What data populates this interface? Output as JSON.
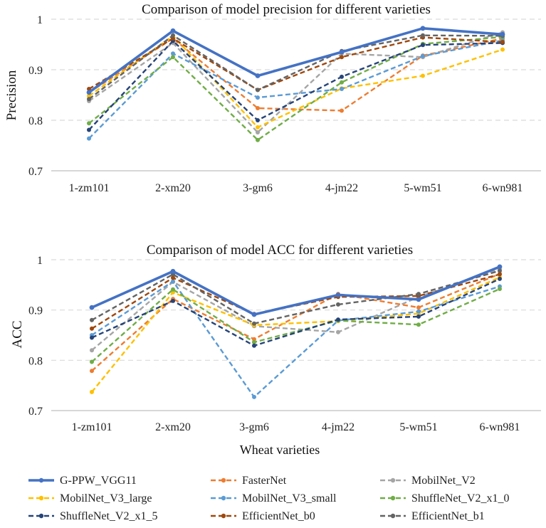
{
  "legend": [
    {
      "name": "G-PPW_VGG11",
      "color": "#4472C4",
      "dash": "solid"
    },
    {
      "name": "FasterNet",
      "color": "#ED7D31",
      "dash": "dash"
    },
    {
      "name": "MobilNet_V2",
      "color": "#A5A5A5",
      "dash": "dash"
    },
    {
      "name": "MobilNet_V3_large",
      "color": "#FFC000",
      "dash": "dash"
    },
    {
      "name": "MobilNet_V3_small",
      "color": "#5B9BD5",
      "dash": "dash"
    },
    {
      "name": "ShuffleNet_V2_x1_0",
      "color": "#70AD47",
      "dash": "dash"
    },
    {
      "name": "ShuffleNet_V2_x1_5",
      "color": "#264478",
      "dash": "dash"
    },
    {
      "name": "EfficientNet_b0",
      "color": "#9E480E",
      "dash": "dash"
    },
    {
      "name": "EfficientNet_b1",
      "color": "#636363",
      "dash": "dash"
    }
  ],
  "chart_data": [
    {
      "type": "line",
      "title": "Comparison of model precision for different varieties",
      "xlabel": "",
      "ylabel": "Precision",
      "ylim": [
        0.7,
        1.0
      ],
      "yticks": [
        "0.7",
        "0.8",
        "0.9",
        "1"
      ],
      "gridlines": "dashed horizontal at 0.8 and 0.9",
      "categories": [
        "1-zm101",
        "2-xm20",
        "3-gm6",
        "4-jm22",
        "5-wm51",
        "6-wn981"
      ],
      "series": [
        {
          "name": "G-PPW_VGG11",
          "values": [
            0.855,
            0.977,
            0.888,
            0.935,
            0.982,
            0.97
          ]
        },
        {
          "name": "FasterNet",
          "values": [
            0.855,
            0.962,
            0.824,
            0.819,
            0.928,
            0.962
          ]
        },
        {
          "name": "MobilNet_V2",
          "values": [
            0.838,
            0.953,
            0.776,
            0.932,
            0.925,
            0.974
          ]
        },
        {
          "name": "MobilNet_V3_large",
          "values": [
            0.848,
            0.967,
            0.786,
            0.863,
            0.888,
            0.94
          ]
        },
        {
          "name": "MobilNet_V3_small",
          "values": [
            0.764,
            0.932,
            0.845,
            0.862,
            0.927,
            0.958
          ]
        },
        {
          "name": "ShuffleNet_V2_x1_0",
          "values": [
            0.794,
            0.925,
            0.761,
            0.875,
            0.951,
            0.965
          ]
        },
        {
          "name": "ShuffleNet_V2_x1_5",
          "values": [
            0.781,
            0.957,
            0.8,
            0.886,
            0.949,
            0.953
          ]
        },
        {
          "name": "EfficientNet_b0",
          "values": [
            0.862,
            0.962,
            0.86,
            0.925,
            0.964,
            0.955
          ]
        },
        {
          "name": "EfficientNet_b1",
          "values": [
            0.842,
            0.968,
            0.86,
            0.937,
            0.968,
            0.967
          ]
        }
      ]
    },
    {
      "type": "line",
      "title": "Comparison of model ACC for different varieties",
      "xlabel": "Wheat varieties",
      "ylabel": "ACC",
      "ylim": [
        0.7,
        1.0
      ],
      "yticks": [
        "0.7",
        "0.8",
        "0.9",
        "1"
      ],
      "gridlines": "dashed horizontal at 0.8 and 0.9",
      "categories": [
        "1-zm101",
        "2-xm20",
        "3-gm6",
        "4-jm22",
        "5-wm51",
        "6-wn981"
      ],
      "series": [
        {
          "name": "G-PPW_VGG11",
          "values": [
            0.905,
            0.977,
            0.891,
            0.93,
            0.921,
            0.986
          ]
        },
        {
          "name": "FasterNet",
          "values": [
            0.779,
            0.922,
            0.842,
            0.932,
            0.905,
            0.972
          ]
        },
        {
          "name": "MobilNet_V2",
          "values": [
            0.82,
            0.956,
            0.868,
            0.856,
            0.926,
            0.981
          ]
        },
        {
          "name": "MobilNet_V3_large",
          "values": [
            0.737,
            0.935,
            0.87,
            0.878,
            0.893,
            0.965
          ]
        },
        {
          "name": "MobilNet_V3_small",
          "values": [
            0.85,
            0.957,
            0.727,
            0.879,
            0.897,
            0.947
          ]
        },
        {
          "name": "ShuffleNet_V2_x1_0",
          "values": [
            0.797,
            0.941,
            0.836,
            0.879,
            0.871,
            0.942
          ]
        },
        {
          "name": "ShuffleNet_V2_x1_5",
          "values": [
            0.845,
            0.918,
            0.829,
            0.881,
            0.887,
            0.962
          ]
        },
        {
          "name": "EfficientNet_b0",
          "values": [
            0.863,
            0.964,
            0.892,
            0.926,
            0.928,
            0.971
          ]
        },
        {
          "name": "EfficientNet_b1",
          "values": [
            0.88,
            0.971,
            0.873,
            0.911,
            0.932,
            0.978
          ]
        }
      ]
    }
  ]
}
